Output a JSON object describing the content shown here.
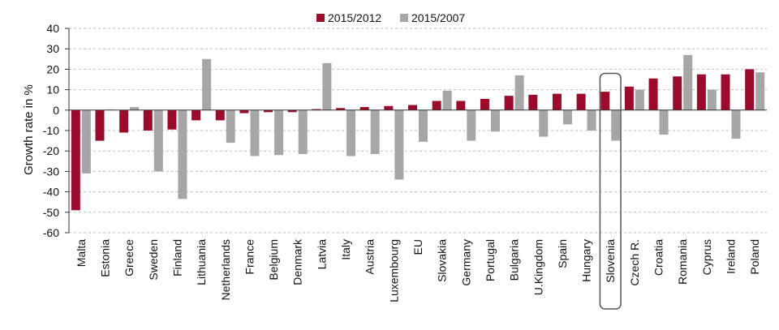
{
  "chart_data": {
    "type": "bar",
    "ylabel": "Growth rate in %",
    "ylim": [
      -60,
      40
    ],
    "yticks": [
      40,
      30,
      20,
      10,
      0,
      -10,
      -20,
      -30,
      -40,
      -50,
      -60
    ],
    "grid": "horizontal-dashed",
    "legend_position": "top-center",
    "highlight_category": "Slovenia",
    "categories": [
      "Malta",
      "Estonia",
      "Greece",
      "Sweden",
      "Finland",
      "Lithuania",
      "Netherlands",
      "France",
      "Belgium",
      "Denmark",
      "Latvia",
      "Italy",
      "Austria",
      "Luxembourg",
      "EU",
      "Slovakia",
      "Germany",
      "Portugal",
      "Bulgaria",
      "U.Kingdom",
      "Spain",
      "Hungary",
      "Slovenia",
      "Czech R.",
      "Croatia",
      "Romania",
      "Cyprus",
      "Ireland",
      "Poland"
    ],
    "series": [
      {
        "name": "2015/2012",
        "color": "#9b0b2c",
        "values": [
          -49,
          -15,
          -11,
          -10,
          -9.5,
          -5,
          -5,
          -1.5,
          -1,
          -1,
          0.5,
          1,
          1.5,
          2,
          2.5,
          4.5,
          4.5,
          5.5,
          7,
          7.5,
          8,
          8,
          9,
          11.5,
          15.5,
          16.5,
          17.5,
          17.5,
          20
        ]
      },
      {
        "name": "2015/2007",
        "color": "#a6a6a6",
        "values": [
          -31,
          0.3,
          1.5,
          -30,
          -43.5,
          25,
          -16,
          -22.5,
          -22,
          -21.5,
          23,
          -22.5,
          -21.5,
          -34,
          -15.5,
          9.5,
          -15,
          -10.5,
          17,
          -13,
          -7,
          -10,
          -15,
          10,
          -12,
          27,
          10,
          -14,
          18.5
        ]
      }
    ]
  }
}
